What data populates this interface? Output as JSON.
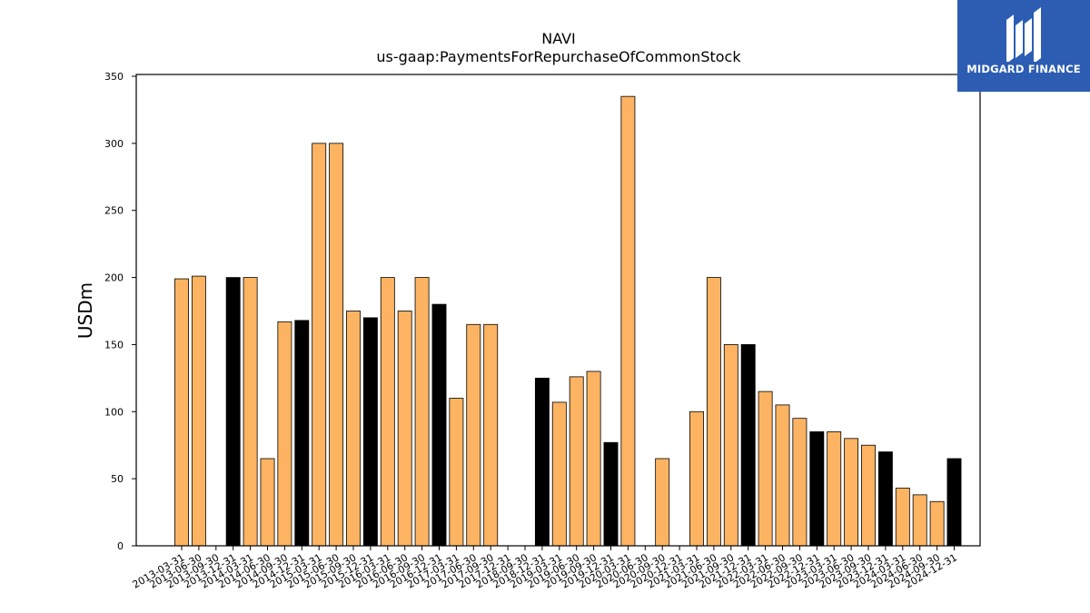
{
  "logo": {
    "text": "MIDGARD FINANCE",
    "color": "#2c5db3"
  },
  "chart_data": {
    "type": "bar",
    "title": "NAVI",
    "subtitle": "us-gaap:PaymentsForRepurchaseOfCommonStock",
    "xlabel": "",
    "ylabel": "USDm",
    "ylim": [
      0,
      350
    ],
    "yticks": [
      0,
      50,
      100,
      150,
      200,
      250,
      300,
      350
    ],
    "grid": false,
    "legend": "none",
    "colors": {
      "quarter": "#fdb462",
      "year_end": "#000000",
      "edge": "#000000"
    },
    "categories": [
      "2013-03-31",
      "2013-06-30",
      "2013-09-30",
      "2013-12-31",
      "2014-03-31",
      "2014-06-30",
      "2014-09-30",
      "2014-12-31",
      "2015-03-31",
      "2015-06-30",
      "2015-09-30",
      "2015-12-31",
      "2016-03-31",
      "2016-06-30",
      "2016-09-30",
      "2016-12-31",
      "2017-03-31",
      "2017-06-30",
      "2017-09-30",
      "2017-12-31",
      "2018-09-30",
      "2018-12-31",
      "2019-03-31",
      "2019-06-30",
      "2019-09-30",
      "2019-12-31",
      "2020-03-31",
      "2020-06-30",
      "2020-09-30",
      "2020-12-31",
      "2021-03-31",
      "2021-06-30",
      "2021-09-30",
      "2021-12-31",
      "2022-03-31",
      "2022-06-30",
      "2022-09-30",
      "2022-12-31",
      "2023-03-31",
      "2023-06-30",
      "2023-09-30",
      "2023-12-31",
      "2024-03-31",
      "2024-06-30",
      "2024-09-30",
      "2024-12-31"
    ],
    "values": [
      199,
      201,
      0,
      200,
      200,
      65,
      167,
      168,
      300,
      300,
      175,
      170,
      200,
      175,
      200,
      180,
      110,
      165,
      165,
      0,
      0,
      125,
      107,
      126,
      130,
      77,
      335,
      0,
      65,
      0,
      100,
      200,
      150,
      150,
      115,
      105,
      95,
      85,
      85,
      80,
      75,
      70,
      43,
      38,
      33,
      65
    ],
    "year_end": [
      false,
      false,
      false,
      true,
      false,
      false,
      false,
      true,
      false,
      false,
      false,
      true,
      false,
      false,
      false,
      true,
      false,
      false,
      false,
      true,
      false,
      true,
      false,
      false,
      false,
      true,
      false,
      false,
      false,
      true,
      false,
      false,
      false,
      true,
      false,
      false,
      false,
      true,
      false,
      false,
      false,
      true,
      false,
      false,
      false,
      true
    ]
  }
}
